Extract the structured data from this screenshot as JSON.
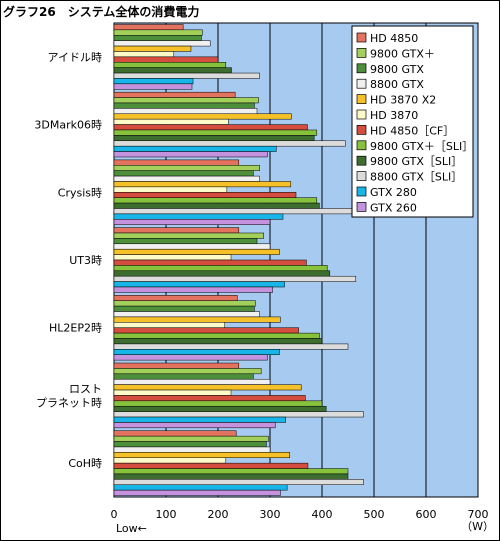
{
  "title": "グラフ26　システム全体の消費電力",
  "chart_data": {
    "type": "bar",
    "orientation": "horizontal",
    "title": "グラフ26　システム全体の消費電力",
    "xlim": [
      0,
      700
    ],
    "xticks": [
      0,
      100,
      200,
      300,
      400,
      500,
      600,
      700
    ],
    "xunit": "（W）",
    "xnote": "Low←",
    "grid": true,
    "legend_position": "top-right",
    "plot_background": "#a6caf0",
    "categories": [
      [
        "アイドル時"
      ],
      [
        "3DMark06時"
      ],
      [
        "Crysis時"
      ],
      [
        "UT3時"
      ],
      [
        "HL2EP2時"
      ],
      [
        "ロスト",
        "プラネット時"
      ],
      [
        "CoH時"
      ]
    ],
    "series": [
      {
        "name": "HD 4850",
        "color": "#e3725e",
        "values": [
          133,
          233,
          240,
          240,
          237,
          240,
          235
        ]
      },
      {
        "name": "9800 GTX＋",
        "color": "#a3d05a",
        "values": [
          170,
          278,
          280,
          288,
          272,
          283,
          297
        ]
      },
      {
        "name": "9800 GTX",
        "color": "#4e8f3c",
        "values": [
          168,
          270,
          268,
          275,
          270,
          268,
          293
        ]
      },
      {
        "name": "8800 GTX",
        "color": "#f0f0f0",
        "values": [
          185,
          275,
          280,
          300,
          280,
          300,
          300
        ]
      },
      {
        "name": "HD 3870 X2",
        "color": "#f5c028",
        "values": [
          148,
          341,
          340,
          318,
          320,
          360,
          338
        ]
      },
      {
        "name": "HD 3870",
        "color": "#fffbc8",
        "values": [
          115,
          220,
          217,
          225,
          213,
          225,
          215
        ]
      },
      {
        "name": "HD 4850［CF］",
        "color": "#d44d3f",
        "values": [
          200,
          372,
          350,
          370,
          355,
          368,
          373
        ]
      },
      {
        "name": "9800 GTX＋［SLI］",
        "color": "#86c23c",
        "values": [
          215,
          390,
          390,
          410,
          395,
          400,
          450
        ]
      },
      {
        "name": "9800 GTX［SLI］",
        "color": "#3d6e30",
        "values": [
          226,
          385,
          395,
          415,
          400,
          408,
          450
        ]
      },
      {
        "name": "8800 GTX［SLI］",
        "color": "#dcdcdc",
        "values": [
          280,
          445,
          465,
          465,
          450,
          480,
          480
        ]
      },
      {
        "name": "GTX 280",
        "color": "#17b5e8",
        "values": [
          152,
          312,
          325,
          328,
          318,
          330,
          333
        ]
      },
      {
        "name": "GTX 260",
        "color": "#c593de",
        "values": [
          150,
          295,
          300,
          305,
          295,
          310,
          320
        ]
      }
    ]
  }
}
